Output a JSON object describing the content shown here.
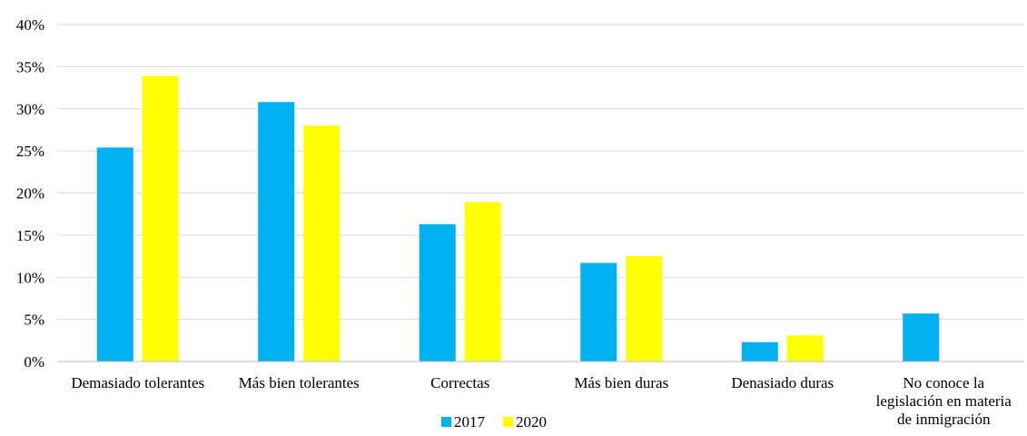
{
  "chart_data": {
    "type": "bar",
    "title": "",
    "xlabel": "",
    "ylabel": "",
    "categories": [
      [
        "Demasiado tolerantes"
      ],
      [
        "Más bien tolerantes"
      ],
      [
        "Correctas"
      ],
      [
        "Más bien duras"
      ],
      [
        "Denasiado duras"
      ],
      [
        "No conoce la",
        "legislación en materia",
        "de inmigración"
      ]
    ],
    "series": [
      {
        "name": "2017",
        "color": "#00b0f0",
        "values": [
          25.4,
          30.8,
          16.3,
          11.7,
          2.3,
          5.7
        ]
      },
      {
        "name": "2020",
        "color": "#ffff00",
        "values": [
          33.9,
          28.0,
          18.9,
          12.5,
          3.1,
          null
        ]
      }
    ],
    "ylim": [
      0,
      40
    ],
    "yticks": [
      "0%",
      "5%",
      "10%",
      "15%",
      "20%",
      "25%",
      "30%",
      "35%",
      "40%"
    ],
    "grid": true,
    "legend_position": "bottom"
  }
}
